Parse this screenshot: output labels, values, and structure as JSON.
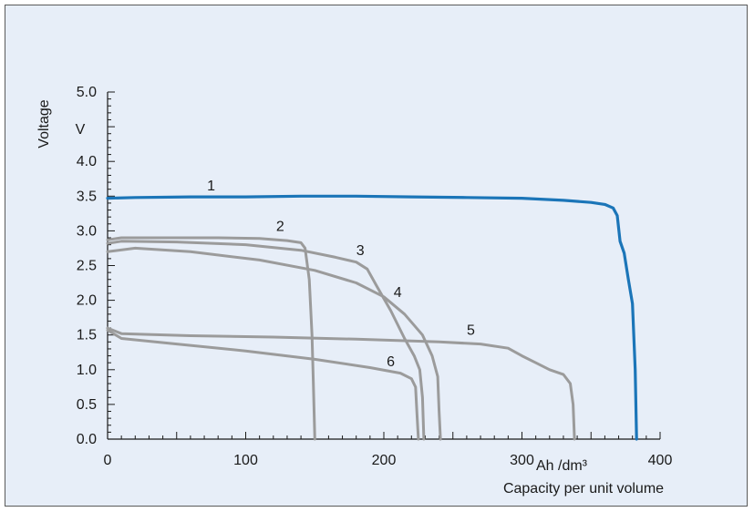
{
  "chart_data": {
    "type": "line",
    "ylabel": "Voltage",
    "yunit": "V",
    "xlabel": "Capacity per unit volume",
    "xunit": "Ah /dm³",
    "xlim": [
      0,
      400
    ],
    "ylim": [
      0,
      5.0
    ],
    "x_ticks": [
      0,
      100,
      200,
      300,
      400
    ],
    "x_tick_labels": [
      "0",
      "100",
      "200",
      "300",
      "400"
    ],
    "y_ticks": [
      0,
      0.5,
      1.0,
      1.5,
      2.0,
      2.5,
      3.0,
      3.5,
      4.0,
      5.0
    ],
    "y_tick_labels": [
      "0.0",
      "0.5",
      "1.0",
      "1.5",
      "2.0",
      "2.5",
      "3.0",
      "3.5",
      "4.0",
      "5.0"
    ],
    "grid": false,
    "colors": {
      "series_1": "#1b75b8",
      "others": "#9b9b9b",
      "background": "#e7eef8"
    },
    "series": [
      {
        "name": "1",
        "color": "#1b75b8",
        "label_at": [
          75,
          3.58
        ],
        "points": [
          [
            0,
            3.47
          ],
          [
            20,
            3.48
          ],
          [
            60,
            3.49
          ],
          [
            100,
            3.49
          ],
          [
            140,
            3.5
          ],
          [
            180,
            3.5
          ],
          [
            220,
            3.49
          ],
          [
            260,
            3.48
          ],
          [
            300,
            3.47
          ],
          [
            330,
            3.44
          ],
          [
            350,
            3.41
          ],
          [
            360,
            3.38
          ],
          [
            366,
            3.33
          ],
          [
            369,
            3.22
          ],
          [
            371,
            2.85
          ],
          [
            374,
            2.68
          ],
          [
            377,
            2.3
          ],
          [
            380,
            1.95
          ],
          [
            382,
            1.0
          ],
          [
            383,
            0.0
          ]
        ]
      },
      {
        "name": "2",
        "color": "#9b9b9b",
        "label_at": [
          125,
          3.0
        ],
        "points": [
          [
            0,
            2.87
          ],
          [
            10,
            2.9
          ],
          [
            40,
            2.9
          ],
          [
            80,
            2.9
          ],
          [
            110,
            2.89
          ],
          [
            130,
            2.86
          ],
          [
            140,
            2.83
          ],
          [
            143,
            2.75
          ],
          [
            146,
            2.3
          ],
          [
            148,
            1.5
          ],
          [
            149,
            0.8
          ],
          [
            150,
            0.0
          ]
        ]
      },
      {
        "name": "3",
        "color": "#9b9b9b",
        "label_at": [
          183,
          2.65
        ],
        "points": [
          [
            0,
            2.82
          ],
          [
            10,
            2.85
          ],
          [
            50,
            2.84
          ],
          [
            100,
            2.8
          ],
          [
            140,
            2.72
          ],
          [
            165,
            2.62
          ],
          [
            180,
            2.55
          ],
          [
            188,
            2.45
          ],
          [
            195,
            2.2
          ],
          [
            205,
            1.85
          ],
          [
            215,
            1.45
          ],
          [
            222,
            1.2
          ],
          [
            226,
            1.0
          ],
          [
            228,
            0.6
          ],
          [
            229,
            0.0
          ]
        ]
      },
      {
        "name": "4",
        "color": "#9b9b9b",
        "label_at": [
          210,
          2.05
        ],
        "points": [
          [
            0,
            2.7
          ],
          [
            20,
            2.75
          ],
          [
            60,
            2.7
          ],
          [
            110,
            2.58
          ],
          [
            150,
            2.43
          ],
          [
            180,
            2.25
          ],
          [
            200,
            2.05
          ],
          [
            215,
            1.8
          ],
          [
            228,
            1.5
          ],
          [
            235,
            1.2
          ],
          [
            239,
            0.9
          ],
          [
            240,
            0.4
          ],
          [
            241,
            0.0
          ]
        ]
      },
      {
        "name": "5",
        "color": "#9b9b9b",
        "label_at": [
          263,
          1.5
        ],
        "points": [
          [
            0,
            1.6
          ],
          [
            10,
            1.52
          ],
          [
            60,
            1.49
          ],
          [
            120,
            1.47
          ],
          [
            180,
            1.44
          ],
          [
            240,
            1.4
          ],
          [
            270,
            1.37
          ],
          [
            290,
            1.31
          ],
          [
            300,
            1.2
          ],
          [
            310,
            1.1
          ],
          [
            320,
            1.0
          ],
          [
            330,
            0.93
          ],
          [
            335,
            0.8
          ],
          [
            337,
            0.5
          ],
          [
            338,
            0.0
          ]
        ]
      },
      {
        "name": "6",
        "color": "#9b9b9b",
        "label_at": [
          205,
          1.05
        ],
        "points": [
          [
            0,
            1.57
          ],
          [
            10,
            1.45
          ],
          [
            50,
            1.37
          ],
          [
            100,
            1.27
          ],
          [
            150,
            1.15
          ],
          [
            190,
            1.03
          ],
          [
            212,
            0.95
          ],
          [
            220,
            0.87
          ],
          [
            223,
            0.75
          ],
          [
            224,
            0.35
          ],
          [
            225,
            0.0
          ]
        ]
      }
    ]
  }
}
